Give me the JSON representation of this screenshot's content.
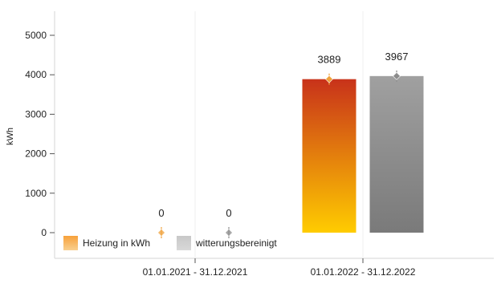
{
  "chart_data": {
    "type": "bar",
    "categories": [
      "01.01.2021 - 31.12.2021",
      "01.01.2022 - 31.12.2022"
    ],
    "series": [
      {
        "name": "Heizung in kWh",
        "values": [
          0,
          3889
        ],
        "data_labels": [
          "0",
          "3889"
        ],
        "color_top": "#c8321a",
        "color_bottom": "#ffcc00",
        "marker_color": "#f0a23c"
      },
      {
        "name": "witterungsbereinigt",
        "values": [
          0,
          3967
        ],
        "data_labels": [
          "0",
          "3967"
        ],
        "color_top": "#a0a0a0",
        "color_bottom": "#7a7a7a",
        "marker_color": "#8c8c8c"
      }
    ],
    "ylabel": "kWh",
    "yticks": [
      "0",
      "1000",
      "2000",
      "3000",
      "4000",
      "5000"
    ],
    "ylim": [
      0,
      5500
    ],
    "grid": false,
    "legend_position": "bottom-left",
    "legend": [
      {
        "label": "Heizung in kWh",
        "swatch_top": "#f7a13a",
        "swatch_bottom": "#f9d08f"
      },
      {
        "label": "witterungsbereinigt",
        "swatch_top": "#c8c8c8",
        "swatch_bottom": "#d8d8d8"
      }
    ]
  }
}
